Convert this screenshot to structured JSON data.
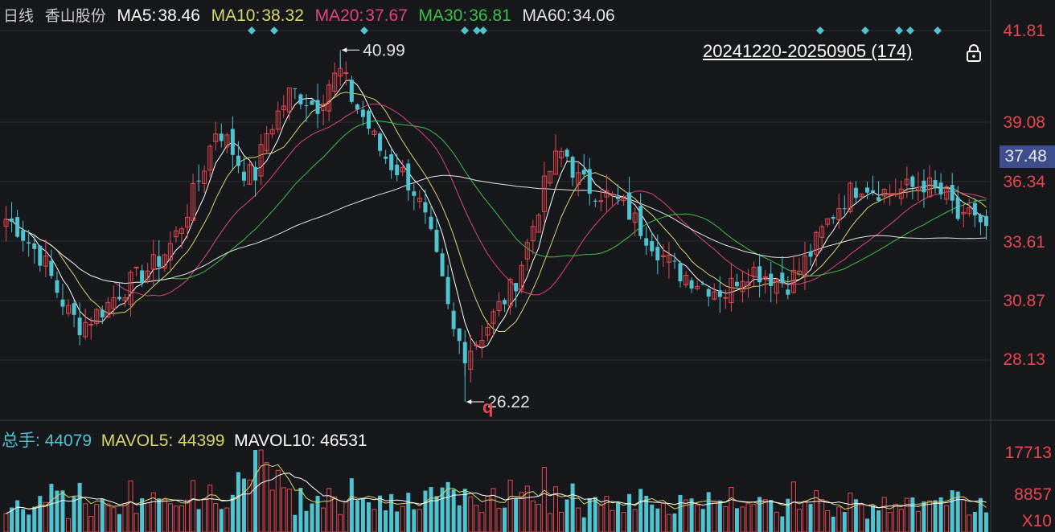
{
  "header": {
    "period": "日线",
    "stock_name": "香山股份",
    "ma": [
      {
        "label": "MA5:",
        "value": "38.46",
        "color": "#ffffff"
      },
      {
        "label": "MA10:",
        "value": "38.32",
        "color": "#d8d66a"
      },
      {
        "label": "MA20:",
        "value": "37.67",
        "color": "#e0447a"
      },
      {
        "label": "MA30:",
        "value": "36.81",
        "color": "#3fbf4a"
      },
      {
        "label": "MA60:",
        "value": "34.06",
        "color": "#e6e6e6"
      }
    ]
  },
  "range": {
    "label": "20241220-20250905 (174)"
  },
  "price_axis": {
    "ticks": [
      "41.81",
      "39.08",
      "36.34",
      "33.61",
      "30.87",
      "28.13"
    ],
    "current": "37.48"
  },
  "annotations": {
    "high": "40.99",
    "low": "26.22",
    "marker": "q"
  },
  "volume": {
    "header": [
      {
        "label": "总手:",
        "value": "44079",
        "color": "#4fc3d0"
      },
      {
        "label": "MAVOL5:",
        "value": "44399",
        "color": "#d8d66a"
      },
      {
        "label": "MAVOL10:",
        "value": "46531",
        "color": "#ffffff"
      }
    ],
    "ticks": [
      "17713",
      "8857",
      "X10"
    ]
  },
  "colors": {
    "up": "#e8474f",
    "down": "#4fc3d0",
    "bg": "#17181c",
    "grid": "#2a2b30",
    "diamond": "#4fc3d0"
  },
  "chart_data": {
    "type": "candlestick",
    "ylim": [
      26.22,
      41.81
    ],
    "high": 40.99,
    "low": 26.22,
    "last_close": 37.48,
    "candle_count": 174,
    "close_path": [
      33.9,
      33.5,
      32.8,
      32.2,
      31.0,
      30.0,
      29.4,
      29.8,
      30.2,
      30.8,
      31.2,
      31.6,
      32.0,
      32.6,
      33.5,
      34.8,
      36.2,
      37.8,
      37.0,
      36.0,
      35.6,
      37.5,
      38.4,
      39.3,
      39.0,
      38.6,
      39.6,
      40.1,
      38.8,
      38.0,
      36.9,
      36.2,
      35.8,
      35.0,
      33.5,
      31.5,
      29.2,
      28.3,
      28.8,
      29.6,
      30.4,
      31.2,
      32.8,
      34.6,
      36.2,
      36.8,
      35.6,
      35.2,
      35.0,
      34.7,
      34.3,
      33.6,
      33.0,
      32.3,
      31.7,
      31.5,
      31.2,
      31.0,
      30.8,
      31.5,
      31.8,
      31.6,
      31.4,
      31.2,
      31.8,
      32.6,
      33.6,
      34.4,
      35.0,
      35.4,
      35.2,
      35.0,
      35.1,
      35.2,
      35.4,
      35.0,
      34.8,
      33.6,
      34.2,
      33.4
    ],
    "volume_max": 17713
  }
}
